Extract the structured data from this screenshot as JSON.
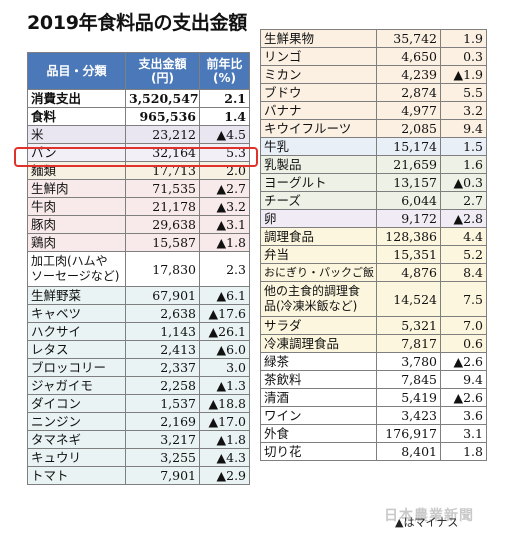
{
  "title": "2019年食料品の支出金額",
  "header": {
    "item": "品目・分類",
    "amount": "支出金額\n(円)",
    "change": "前年比\n(%)"
  },
  "left_rows": [
    {
      "label": "消費支出",
      "amount": "3,520,547",
      "change": "2.1",
      "cls": "bold",
      "ind": ""
    },
    {
      "label": "食料",
      "amount": "965,536",
      "change": "1.4",
      "cls": "bold",
      "ind": ""
    },
    {
      "label": "米",
      "amount": "23,212",
      "change": "▲4.5",
      "cls": "c-rice",
      "ind": ""
    },
    {
      "label": "パン",
      "amount": "32,164",
      "change": "5.3",
      "cls": "c-bread",
      "ind": ""
    },
    {
      "label": "麺類",
      "amount": "17,713",
      "change": "2.0",
      "cls": "c-noodle",
      "ind": ""
    },
    {
      "label": "生鮮肉",
      "amount": "71,535",
      "change": "▲2.7",
      "cls": "c-meat",
      "ind": ""
    },
    {
      "label": "牛肉",
      "amount": "21,178",
      "change": "▲3.2",
      "cls": "c-meat",
      "ind": "sub"
    },
    {
      "label": "豚肉",
      "amount": "29,638",
      "change": "▲3.1",
      "cls": "c-meat",
      "ind": "sub"
    },
    {
      "label": "鶏肉",
      "amount": "15,587",
      "change": "▲1.8",
      "cls": "c-meat",
      "ind": "sub"
    },
    {
      "label": "加工肉(ハムや\nソーセージなど)",
      "amount": "17,830",
      "change": "2.3",
      "cls": "c-proc",
      "ind": "wrap"
    },
    {
      "label": "生鮮野菜",
      "amount": "67,901",
      "change": "▲6.1",
      "cls": "c-veg",
      "ind": ""
    },
    {
      "label": "キャベツ",
      "amount": "2,638",
      "change": "▲17.6",
      "cls": "c-veg",
      "ind": "sub"
    },
    {
      "label": "ハクサイ",
      "amount": "1,143",
      "change": "▲26.1",
      "cls": "c-veg",
      "ind": "sub"
    },
    {
      "label": "レタス",
      "amount": "2,413",
      "change": "▲6.0",
      "cls": "c-veg",
      "ind": "sub"
    },
    {
      "label": "ブロッコリー",
      "amount": "2,337",
      "change": "3.0",
      "cls": "c-veg",
      "ind": "sub"
    },
    {
      "label": "ジャガイモ",
      "amount": "2,258",
      "change": "▲1.3",
      "cls": "c-veg",
      "ind": "sub"
    },
    {
      "label": "ダイコン",
      "amount": "1,537",
      "change": "▲18.8",
      "cls": "c-veg",
      "ind": "sub"
    },
    {
      "label": "ニンジン",
      "amount": "2,169",
      "change": "▲17.0",
      "cls": "c-veg",
      "ind": "sub"
    },
    {
      "label": "タマネギ",
      "amount": "3,217",
      "change": "▲1.8",
      "cls": "c-veg",
      "ind": "sub"
    },
    {
      "label": "キュウリ",
      "amount": "3,255",
      "change": "▲4.3",
      "cls": "c-veg",
      "ind": "sub"
    },
    {
      "label": "トマト",
      "amount": "7,901",
      "change": "▲2.9",
      "cls": "c-veg",
      "ind": "sub"
    }
  ],
  "right_rows": [
    {
      "label": "生鮮果物",
      "amount": "35,742",
      "change": "1.9",
      "cls": "c-fruit",
      "ind": ""
    },
    {
      "label": "リンゴ",
      "amount": "4,650",
      "change": "0.3",
      "cls": "c-fruit",
      "ind": "sub"
    },
    {
      "label": "ミカン",
      "amount": "4,239",
      "change": "▲1.9",
      "cls": "c-fruit",
      "ind": "sub"
    },
    {
      "label": "ブドウ",
      "amount": "2,874",
      "change": "5.5",
      "cls": "c-fruit",
      "ind": "sub"
    },
    {
      "label": "バナナ",
      "amount": "4,977",
      "change": "3.2",
      "cls": "c-fruit",
      "ind": "sub"
    },
    {
      "label": "キウイフルーツ",
      "amount": "2,085",
      "change": "9.4",
      "cls": "c-fruit",
      "ind": "sub"
    },
    {
      "label": "牛乳",
      "amount": "15,174",
      "change": "1.5",
      "cls": "c-milk",
      "ind": ""
    },
    {
      "label": "乳製品",
      "amount": "21,659",
      "change": "1.6",
      "cls": "c-dairy",
      "ind": ""
    },
    {
      "label": "ヨーグルト",
      "amount": "13,157",
      "change": "▲0.3",
      "cls": "c-dairy",
      "ind": "sub2"
    },
    {
      "label": "チーズ",
      "amount": "6,044",
      "change": "2.7",
      "cls": "c-dairy",
      "ind": "sub2"
    },
    {
      "label": "卵",
      "amount": "9,172",
      "change": "▲2.8",
      "cls": "c-egg",
      "ind": ""
    },
    {
      "label": "調理食品",
      "amount": "128,386",
      "change": "4.4",
      "cls": "c-cook",
      "ind": ""
    },
    {
      "label": "弁当",
      "amount": "15,351",
      "change": "5.2",
      "cls": "c-cook",
      "ind": "sub"
    },
    {
      "label": "おにぎり・パックご飯",
      "amount": "4,876",
      "change": "8.4",
      "cls": "c-cook",
      "ind": "small"
    },
    {
      "label": "他の主食的調理食\n品(冷凍米飯など)",
      "amount": "14,524",
      "change": "7.5",
      "cls": "c-cook",
      "ind": "wrap"
    },
    {
      "label": "サラダ",
      "amount": "5,321",
      "change": "7.0",
      "cls": "c-cook",
      "ind": "sub"
    },
    {
      "label": "冷凍調理食品",
      "amount": "7,817",
      "change": "0.6",
      "cls": "c-cook",
      "ind": "sub"
    },
    {
      "label": "緑茶",
      "amount": "3,780",
      "change": "▲2.6",
      "cls": "c-misc",
      "ind": ""
    },
    {
      "label": "茶飲料",
      "amount": "7,845",
      "change": "9.4",
      "cls": "c-misc",
      "ind": ""
    },
    {
      "label": "清酒",
      "amount": "5,419",
      "change": "▲2.6",
      "cls": "c-misc",
      "ind": ""
    },
    {
      "label": "ワイン",
      "amount": "3,423",
      "change": "3.6",
      "cls": "c-misc",
      "ind": ""
    },
    {
      "label": "外食",
      "amount": "176,917",
      "change": "3.1",
      "cls": "c-misc",
      "ind": ""
    },
    {
      "label": "切り花",
      "amount": "8,401",
      "change": "1.8",
      "cls": "c-misc",
      "ind": ""
    }
  ],
  "note": "▲はマイナス",
  "credit": "日本農業新聞",
  "highlight_color": "#e0322a"
}
